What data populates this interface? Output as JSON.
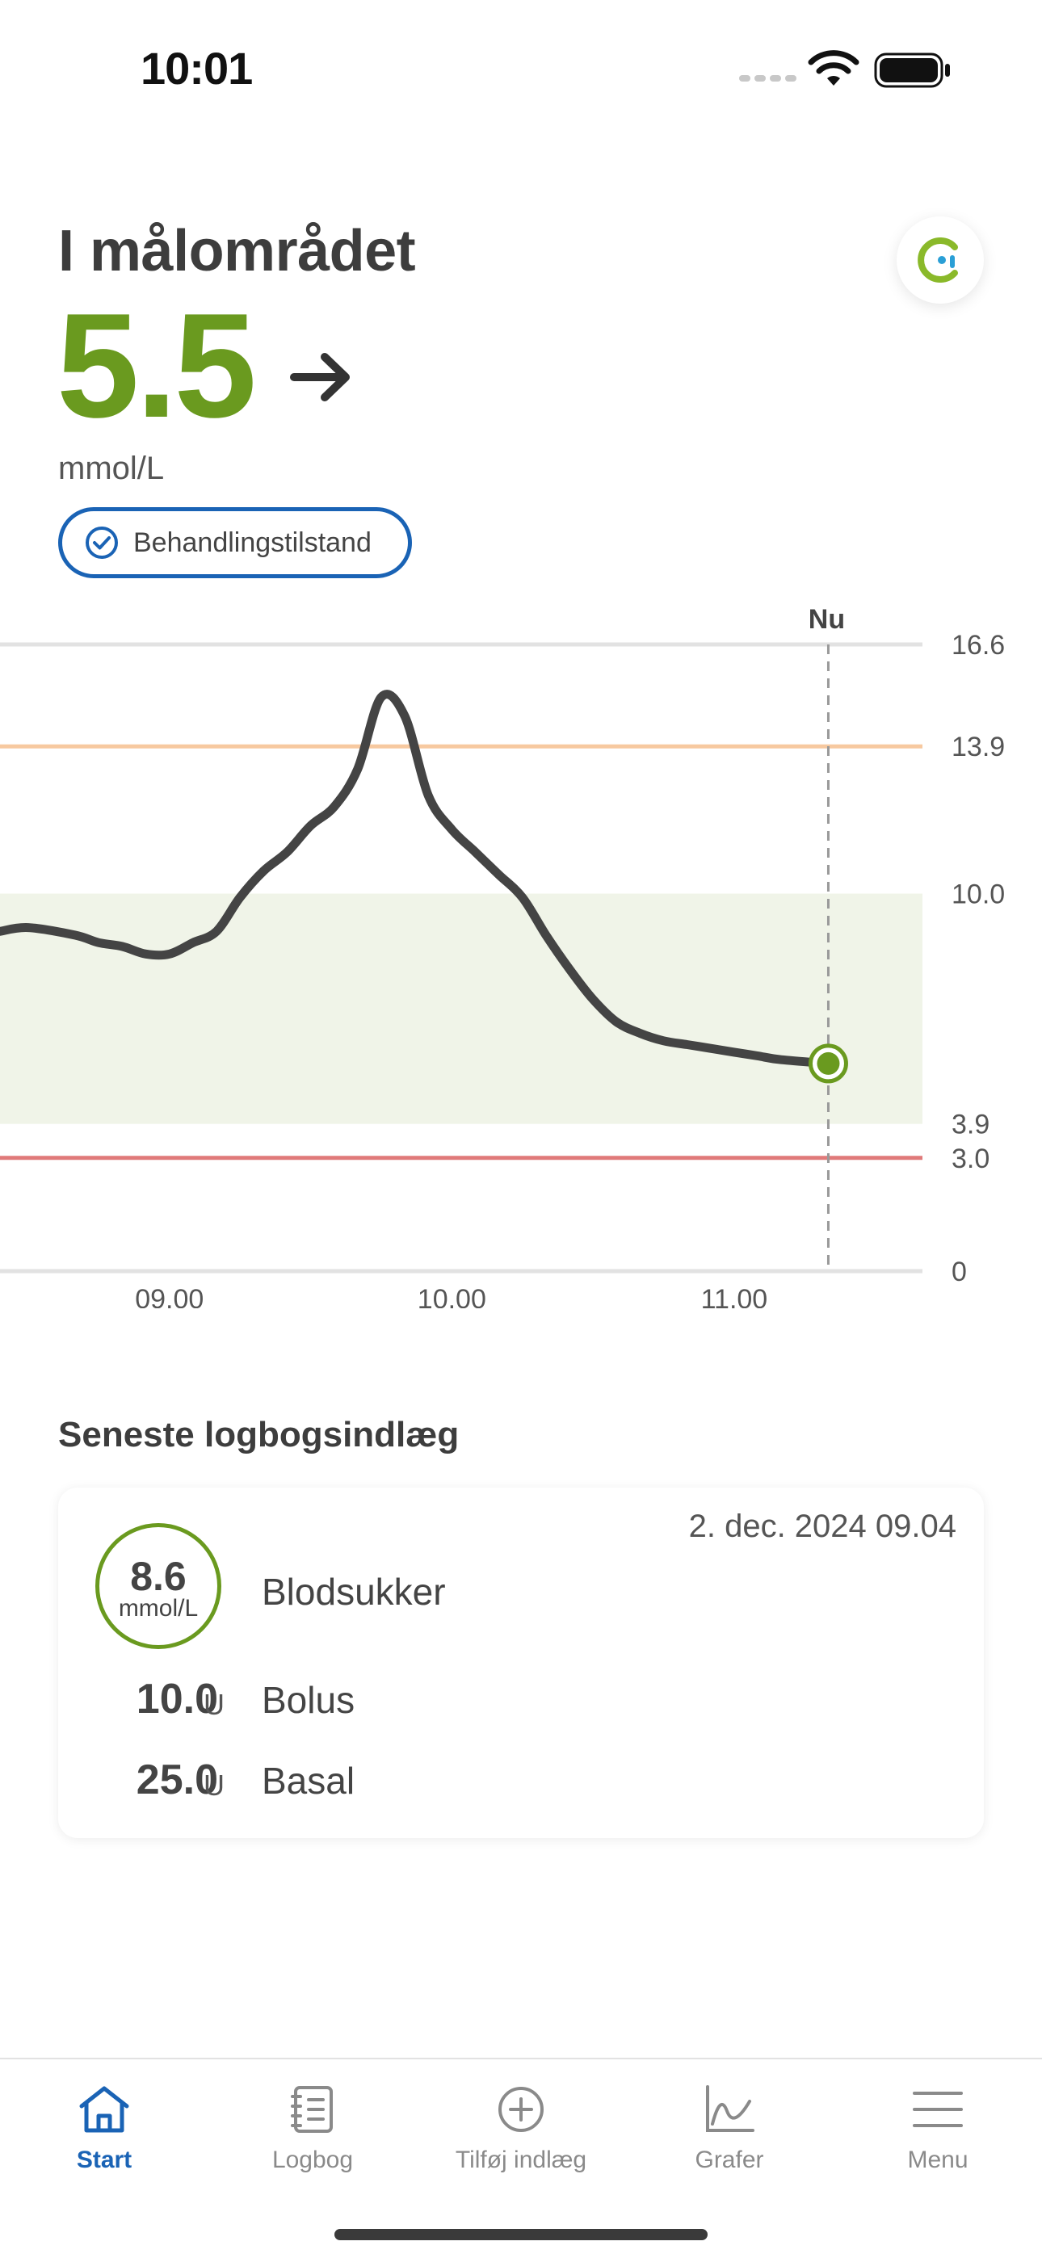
{
  "status_bar": {
    "time": "10:01"
  },
  "header": {
    "status_title": "I målområdet",
    "glucose_value": "5.5",
    "glucose_unit": "mmol/L",
    "trend_icon": "arrow-right-icon",
    "treatment_chip_label": "Behandlingstilstand"
  },
  "colors": {
    "in_range_green": "#6a9a1f",
    "accent_blue": "#1a63b5",
    "high_line": "#f7c9a0",
    "low_line": "#e07a7a",
    "target_band": "#f0f4e8",
    "curve": "#444444"
  },
  "chart_data": {
    "type": "line",
    "now_label": "Nu",
    "x_tick_labels": [
      "09.00",
      "10.00",
      "11.00"
    ],
    "y_tick_labels": [
      "16.6",
      "13.9",
      "10.0",
      "3.9",
      "3.0",
      "0"
    ],
    "y_ticks": [
      16.6,
      13.9,
      10.0,
      3.9,
      3.0,
      0
    ],
    "ylim": [
      0,
      16.6
    ],
    "xlim": [
      "08.24",
      "11.40"
    ],
    "target_range": [
      3.9,
      10.0
    ],
    "high_threshold": 13.9,
    "low_threshold": 3.0,
    "now_time": "11.20",
    "series": [
      {
        "x": [
          "08.24",
          "08.30",
          "08.40",
          "08.45",
          "08.50",
          "08.55",
          "09.00",
          "09.05",
          "09.10",
          "09.15",
          "09.20",
          "09.25",
          "09.30",
          "09.35",
          "09.40",
          "09.45",
          "09.50",
          "09.55",
          "10.00",
          "10.05",
          "10.10",
          "10.15",
          "10.20",
          "10.25",
          "10.30",
          "10.35",
          "10.40",
          "10.45",
          "10.50",
          "10.55",
          "11.00",
          "11.05",
          "11.10",
          "11.20"
        ],
        "y": [
          9.0,
          9.1,
          8.9,
          8.7,
          8.6,
          8.4,
          8.4,
          8.7,
          9.0,
          9.9,
          10.6,
          11.1,
          11.8,
          12.3,
          13.3,
          15.2,
          14.7,
          12.6,
          11.7,
          11.1,
          10.5,
          9.9,
          8.9,
          8.0,
          7.2,
          6.6,
          6.3,
          6.1,
          6.0,
          5.9,
          5.8,
          5.7,
          5.6,
          5.5
        ]
      }
    ]
  },
  "log": {
    "section_title": "Seneste logbogsindlæg",
    "date": "2. dec. 2024 09.04",
    "blood_sugar": {
      "value": "8.6",
      "unit": "mmol/L",
      "label": "Blodsukker"
    },
    "bolus": {
      "value": "10.0",
      "unit": "U",
      "label": "Bolus"
    },
    "basal": {
      "value": "25.0",
      "unit": "U",
      "label": "Basal"
    }
  },
  "tabs": [
    {
      "label": "Start",
      "icon": "home-icon",
      "active": true
    },
    {
      "label": "Logbog",
      "icon": "notebook-icon",
      "active": false
    },
    {
      "label": "Tilføj indlæg",
      "icon": "add-circle-icon",
      "active": false
    },
    {
      "label": "Grafer",
      "icon": "graph-icon",
      "active": false
    },
    {
      "label": "Menu",
      "icon": "menu-icon",
      "active": false
    }
  ]
}
